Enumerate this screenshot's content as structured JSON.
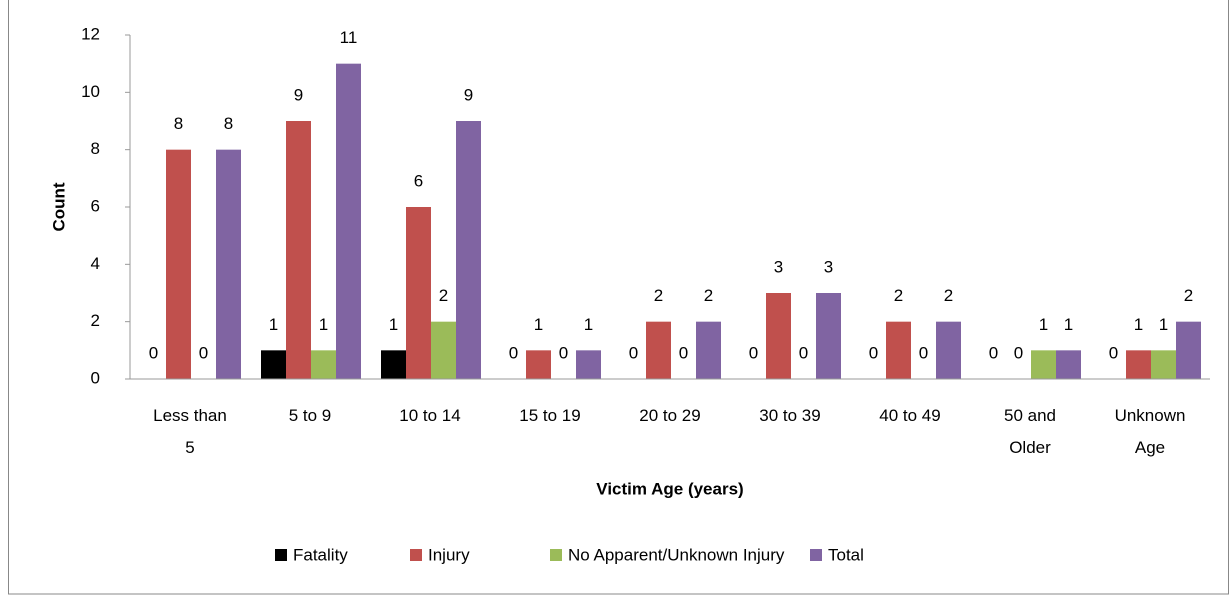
{
  "chart_data": {
    "type": "bar",
    "categories": [
      "Less than 5",
      "5 to 9",
      "10 to 14",
      "15 to 19",
      "20 to 29",
      "30 to 39",
      "40 to 49",
      "50 and Older",
      "Unknown Age"
    ],
    "series": [
      {
        "name": "Fatality",
        "color": "#000000",
        "values": [
          0,
          1,
          1,
          0,
          0,
          0,
          0,
          0,
          0
        ]
      },
      {
        "name": "Injury",
        "color": "#c0504d",
        "values": [
          8,
          9,
          6,
          1,
          2,
          3,
          2,
          0,
          1
        ]
      },
      {
        "name": "No Apparent/Unknown Injury",
        "color": "#9bbb59",
        "values": [
          0,
          1,
          2,
          0,
          0,
          0,
          0,
          1,
          1
        ]
      },
      {
        "name": "Total",
        "color": "#8064a2",
        "values": [
          8,
          11,
          9,
          1,
          2,
          3,
          2,
          1,
          2
        ]
      }
    ],
    "xlabel": "Victim Age (years)",
    "ylabel": "Count",
    "ylim": [
      0,
      12
    ],
    "yticks": [
      0,
      2,
      4,
      6,
      8,
      10,
      12
    ],
    "grid": false,
    "legend": "bottom"
  }
}
